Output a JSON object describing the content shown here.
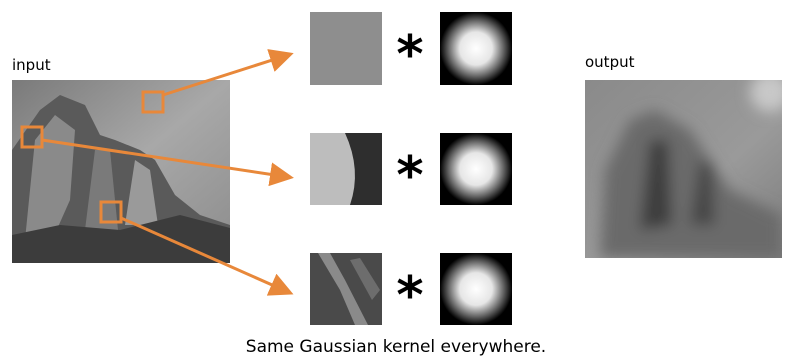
{
  "input_label": "input",
  "output_label": "output",
  "operators": [
    "*",
    "*",
    "*"
  ],
  "caption": "Same Gaussian kernel everywhere."
}
